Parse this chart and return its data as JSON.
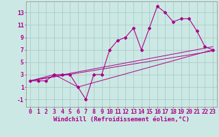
{
  "title": "",
  "xlabel": "Windchill (Refroidissement éolien,°C)",
  "bg_color": "#cce8e4",
  "grid_color": "#aaccc8",
  "line_color": "#aa0088",
  "xlim": [
    -0.5,
    23.5
  ],
  "ylim": [
    -2.2,
    14.8
  ],
  "yticks": [
    -1,
    1,
    3,
    5,
    7,
    9,
    11,
    13
  ],
  "xticks": [
    0,
    1,
    2,
    3,
    4,
    5,
    6,
    7,
    8,
    9,
    10,
    11,
    12,
    13,
    14,
    15,
    16,
    17,
    18,
    19,
    20,
    21,
    22,
    23
  ],
  "line1_x": [
    0,
    1,
    2,
    3,
    4,
    5,
    6,
    7,
    8,
    9,
    10,
    11,
    12,
    13,
    14,
    15,
    16,
    17,
    18,
    19,
    20,
    21,
    22,
    23
  ],
  "line1_y": [
    2,
    2,
    2,
    3,
    3,
    3,
    1,
    -1,
    3,
    3,
    7,
    8.5,
    9,
    10.5,
    7,
    10.5,
    14,
    13,
    11.5,
    12,
    12,
    10,
    7.5,
    7
  ],
  "line2_x": [
    0,
    3,
    6,
    23
  ],
  "line2_y": [
    2,
    3,
    1,
    7
  ],
  "line3_x": [
    0,
    23
  ],
  "line3_y": [
    2,
    7.5
  ],
  "line4_x": [
    0,
    23
  ],
  "line4_y": [
    2,
    6.8
  ],
  "xlabel_fontsize": 6.5,
  "tick_fontsize": 6.0
}
